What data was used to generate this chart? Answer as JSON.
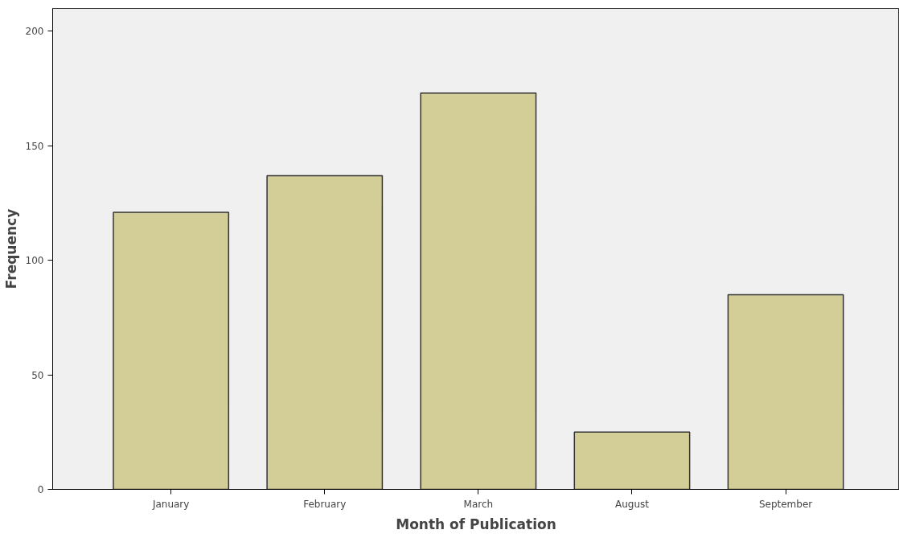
{
  "chart_data": {
    "type": "bar",
    "xlabel": "Month of Publication",
    "ylabel": "Frequency",
    "categories": [
      "January",
      "February",
      "March",
      "August",
      "September"
    ],
    "values": [
      121,
      137,
      173,
      25,
      85
    ],
    "color": "#d3ce98",
    "ylim": [
      0,
      210
    ],
    "yticks": [
      0,
      50,
      100,
      150,
      200
    ],
    "grid": false
  }
}
